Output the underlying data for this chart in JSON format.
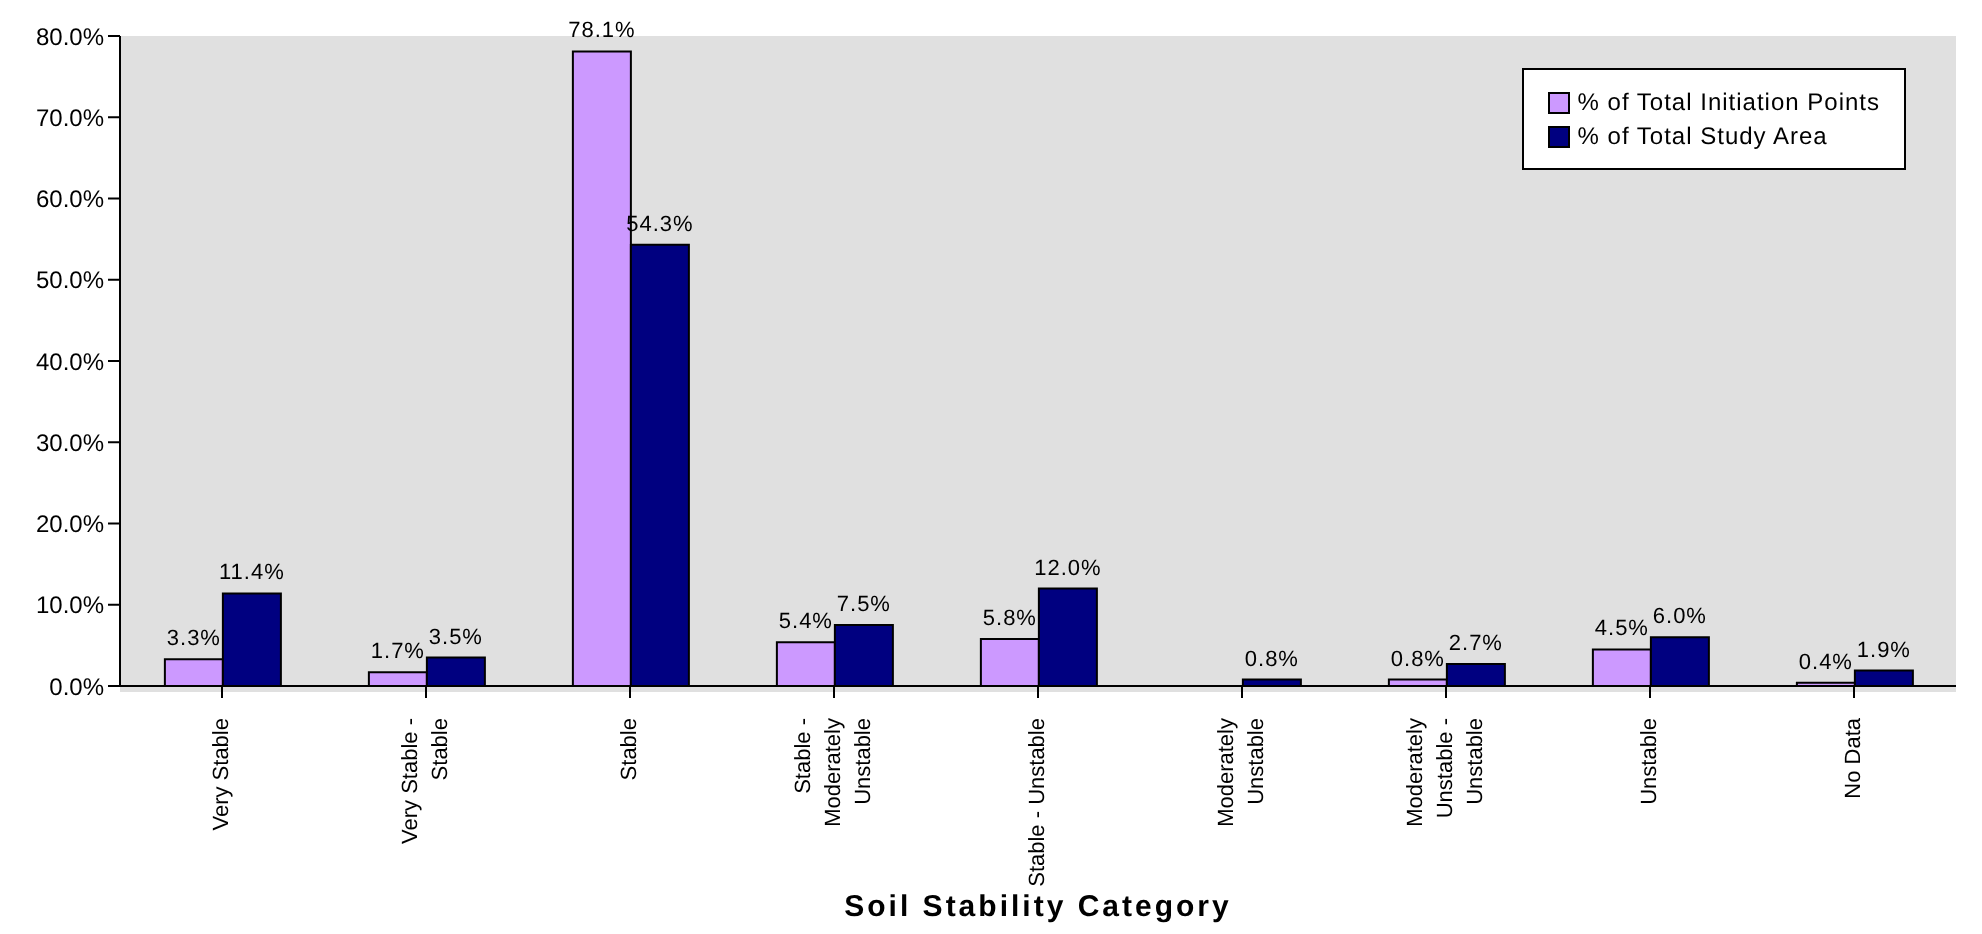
{
  "chart_data": {
    "type": "bar",
    "xlabel": "Soil Stability Category",
    "categories": [
      "Very Stable",
      "Very Stable - Stable",
      "Stable",
      "Stable - Moderately Unstable",
      "Stable - Unstable",
      "Moderately Unstable",
      "Moderately Unstable - Unstable",
      "Unstable",
      "No Data"
    ],
    "series": [
      {
        "name": "% of Total Initiation Points",
        "color": "#cc99ff",
        "values": [
          3.3,
          1.7,
          78.1,
          5.4,
          5.8,
          null,
          0.8,
          4.5,
          0.4
        ],
        "value_labels": [
          "3.3%",
          "1.7%",
          "78.1%",
          "5.4%",
          "5.8%",
          null,
          "0.8%",
          "4.5%",
          "0.4%"
        ]
      },
      {
        "name": "% of Total Study Area",
        "color": "#000080",
        "values": [
          11.4,
          3.5,
          54.3,
          7.5,
          12.0,
          0.8,
          2.7,
          6.0,
          1.9
        ],
        "value_labels": [
          "11.4%",
          "3.5%",
          "54.3%",
          "7.5%",
          "12.0%",
          "0.8%",
          "2.7%",
          "6.0%",
          "1.9%"
        ]
      }
    ],
    "ylim": [
      0,
      80
    ],
    "yticks": [
      {
        "value": 0,
        "label": "0.0%"
      },
      {
        "value": 10,
        "label": "10.0%"
      },
      {
        "value": 20,
        "label": "20.0%"
      },
      {
        "value": 30,
        "label": "30.0%"
      },
      {
        "value": 40,
        "label": "40.0%"
      },
      {
        "value": 50,
        "label": "50.0%"
      },
      {
        "value": 60,
        "label": "60.0%"
      },
      {
        "value": 70,
        "label": "70.0%"
      },
      {
        "value": 80,
        "label": "80.0%"
      }
    ],
    "grid": false,
    "legend": "top right"
  }
}
